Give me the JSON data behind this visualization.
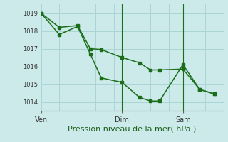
{
  "background_color": "#cceaea",
  "grid_color": "#aad4d4",
  "line_color": "#1a6e1a",
  "xlabel": "Pression niveau de la mer( hPa )",
  "ylim": [
    1013.5,
    1019.5
  ],
  "yticks": [
    1014,
    1015,
    1016,
    1017,
    1018,
    1019
  ],
  "xtick_positions": [
    0.0,
    0.444,
    0.778
  ],
  "xtick_labels": [
    "Ven",
    "Dim",
    "Sam"
  ],
  "vline_positions": [
    0.444,
    0.778
  ],
  "series1_x": [
    0.0,
    0.1,
    0.2,
    0.27,
    0.33,
    0.444,
    0.54,
    0.6,
    0.65,
    0.778,
    0.87,
    0.95
  ],
  "series1_y": [
    1019.0,
    1017.8,
    1018.25,
    1016.7,
    1015.35,
    1015.1,
    1014.25,
    1014.05,
    1014.05,
    1016.1,
    1014.7,
    1014.45
  ],
  "series2_x": [
    0.0,
    0.1,
    0.2,
    0.27,
    0.33,
    0.444,
    0.54,
    0.6,
    0.65,
    0.778,
    0.87,
    0.95
  ],
  "series2_y": [
    1019.0,
    1018.2,
    1018.3,
    1017.0,
    1016.95,
    1016.5,
    1016.2,
    1015.8,
    1015.8,
    1015.85,
    1014.7,
    1014.45
  ],
  "num_vgrid": 10,
  "xlabel_fontsize": 8,
  "xlabel_color": "#1a5c1a",
  "ytick_fontsize": 6,
  "xtick_fontsize": 7
}
